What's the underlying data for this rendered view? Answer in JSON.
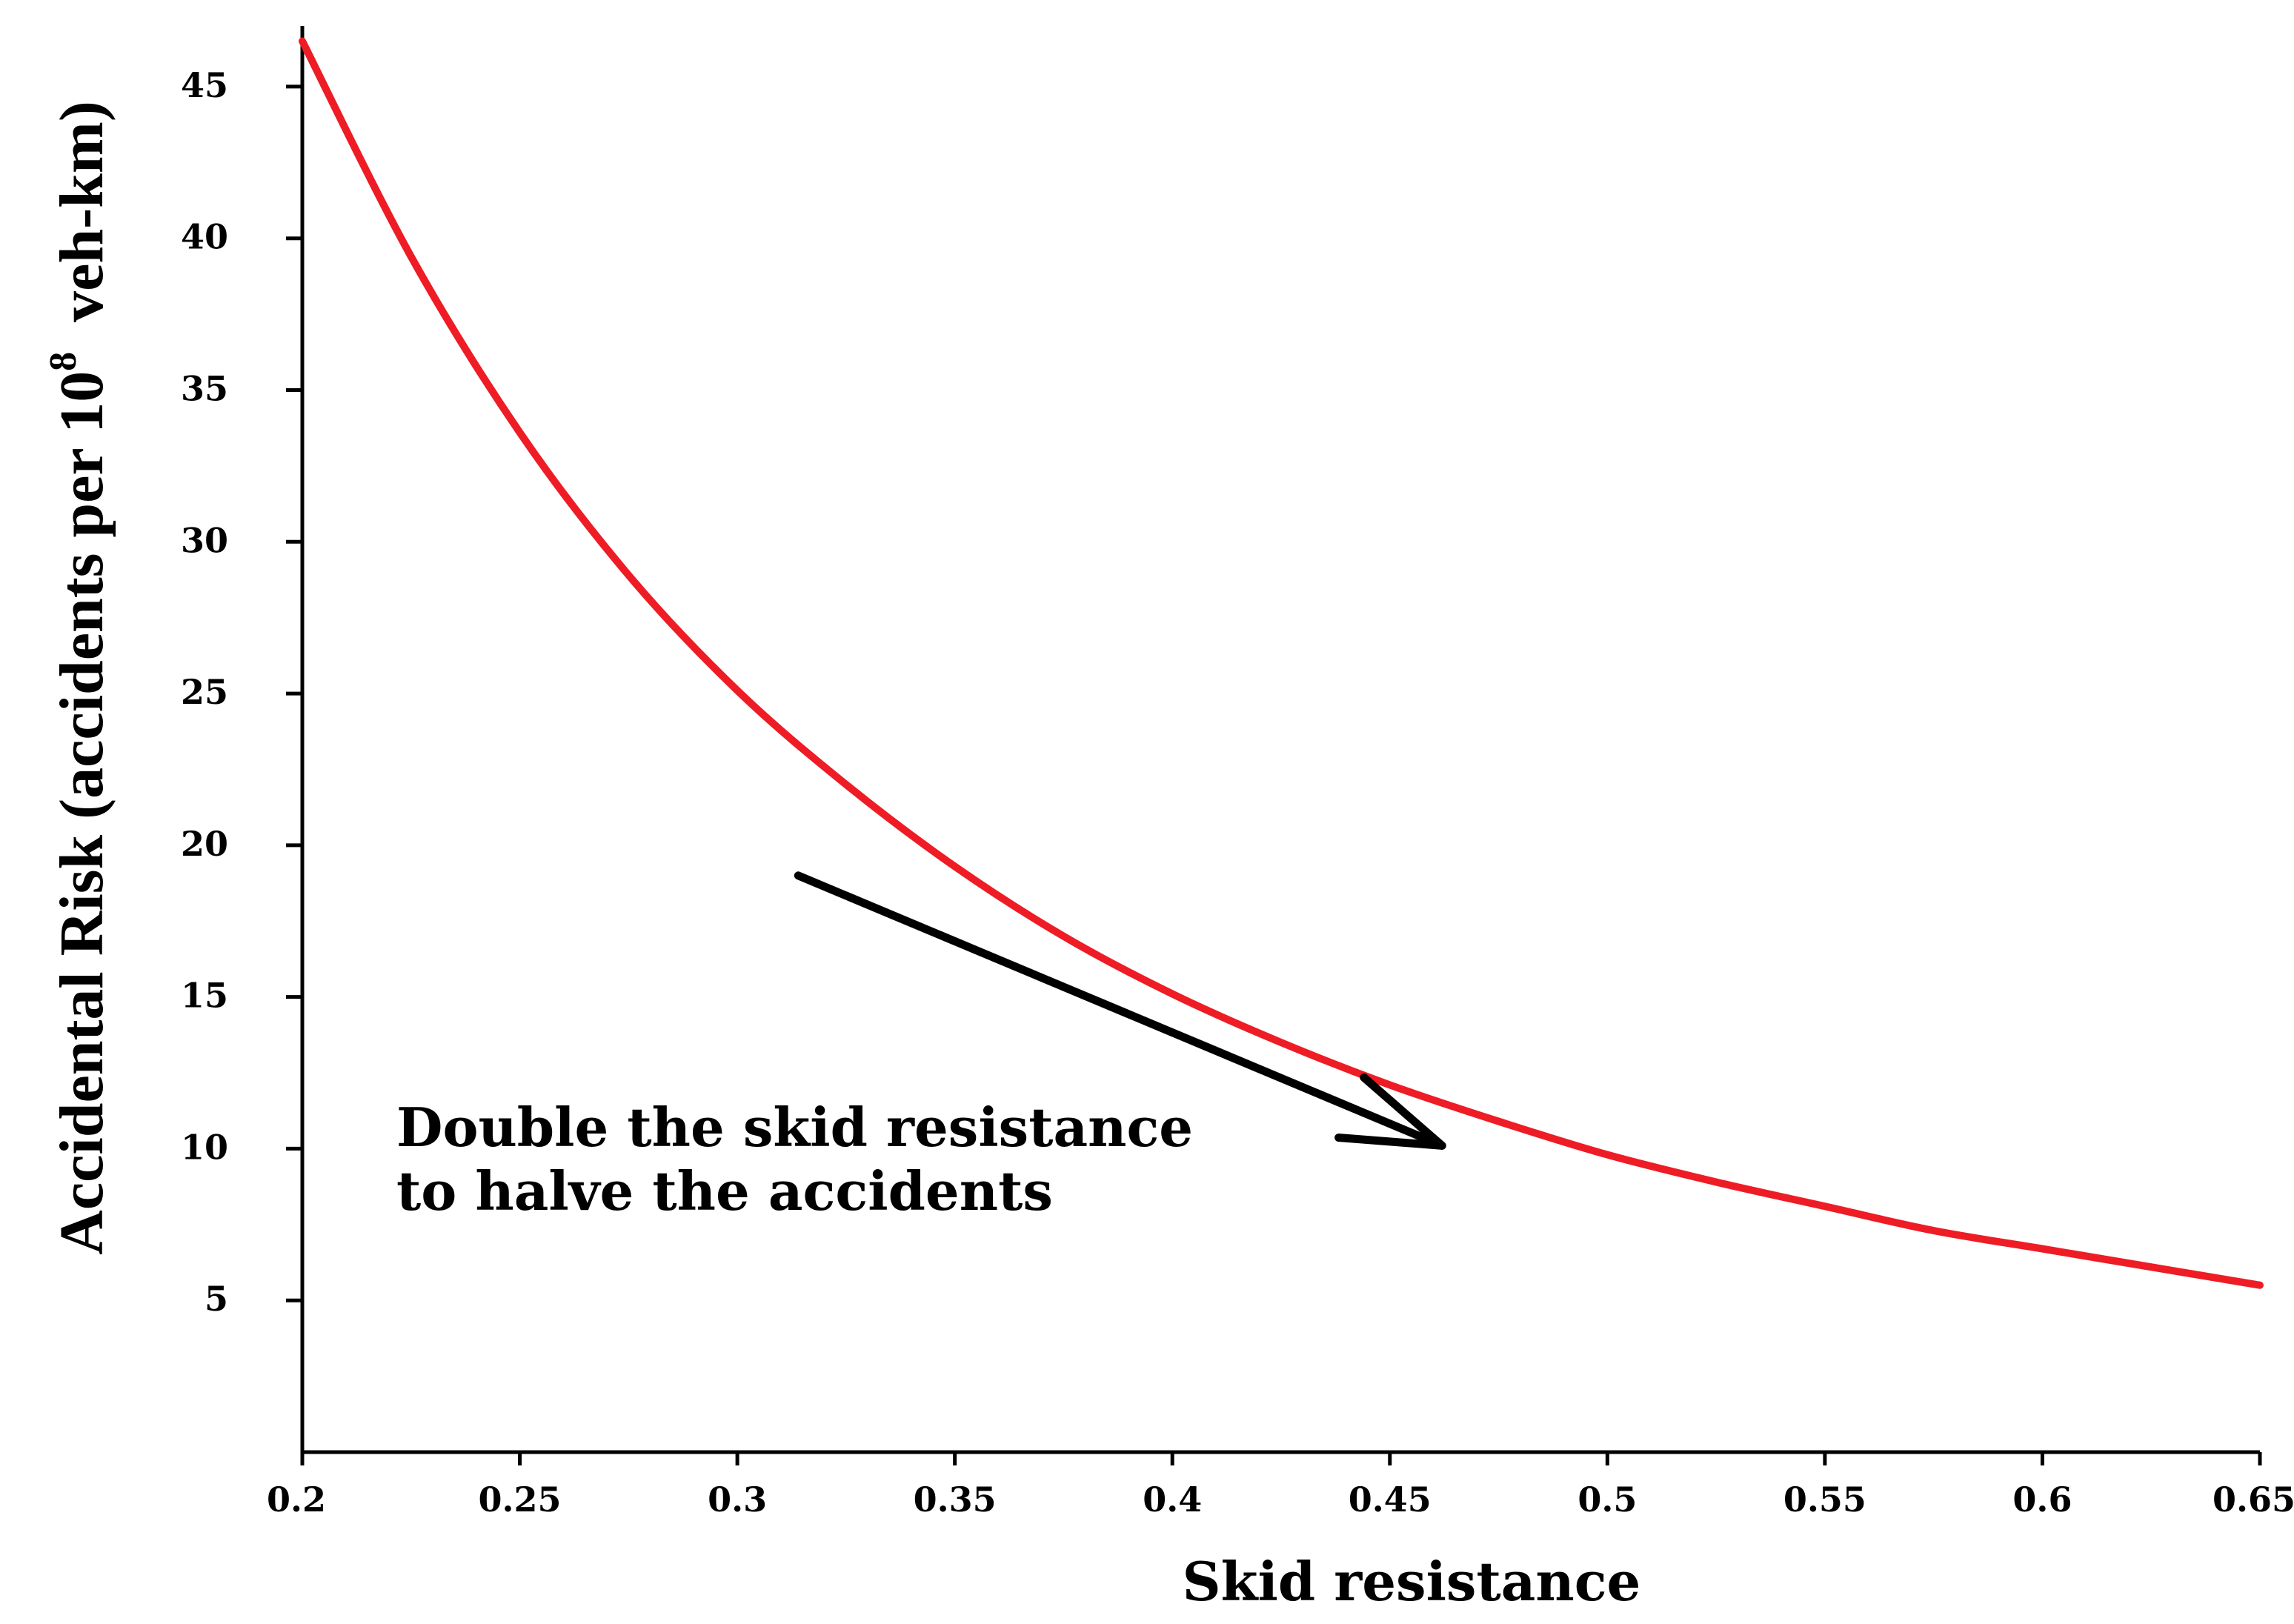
{
  "chart_data": {
    "type": "line",
    "title": "",
    "xlabel": "Skid resistance",
    "ylabel": {
      "prefix": "Accidental Risk (accidents per 10",
      "superscript": "8",
      "suffix": "veh-km)"
    },
    "xlim": [
      0.2,
      0.65
    ],
    "ylim": [
      0,
      47
    ],
    "grid": false,
    "legend": "none",
    "x_ticks": [
      "0.2",
      "0.25",
      "0.3",
      "0.35",
      "0.4",
      "0.45",
      "0.5",
      "0.55",
      "0.6",
      "0.65"
    ],
    "y_ticks": [
      "5",
      "10",
      "15",
      "20",
      "25",
      "30",
      "35",
      "40",
      "45"
    ],
    "line_color": "#ee1c25",
    "series": [
      {
        "x": [
          0.2,
          0.225,
          0.25,
          0.275,
          0.3,
          0.325,
          0.35,
          0.375,
          0.4,
          0.425,
          0.45,
          0.475,
          0.5,
          0.525,
          0.55,
          0.575,
          0.6,
          0.625,
          0.65
        ],
        "values": [
          46.5,
          39.4,
          33.6,
          28.9,
          25.1,
          22.0,
          19.3,
          17.0,
          15.1,
          13.5,
          12.1,
          10.9,
          9.8,
          8.9,
          8.1,
          7.3,
          6.7,
          6.1,
          5.5
        ]
      }
    ],
    "annotation": {
      "lines": [
        "Double the skid resistance",
        "to halve the accidents"
      ],
      "arrow_from": [
        0.314,
        19.0
      ],
      "arrow_to": [
        0.462,
        10.1
      ],
      "arrow_color": "#000000"
    }
  }
}
